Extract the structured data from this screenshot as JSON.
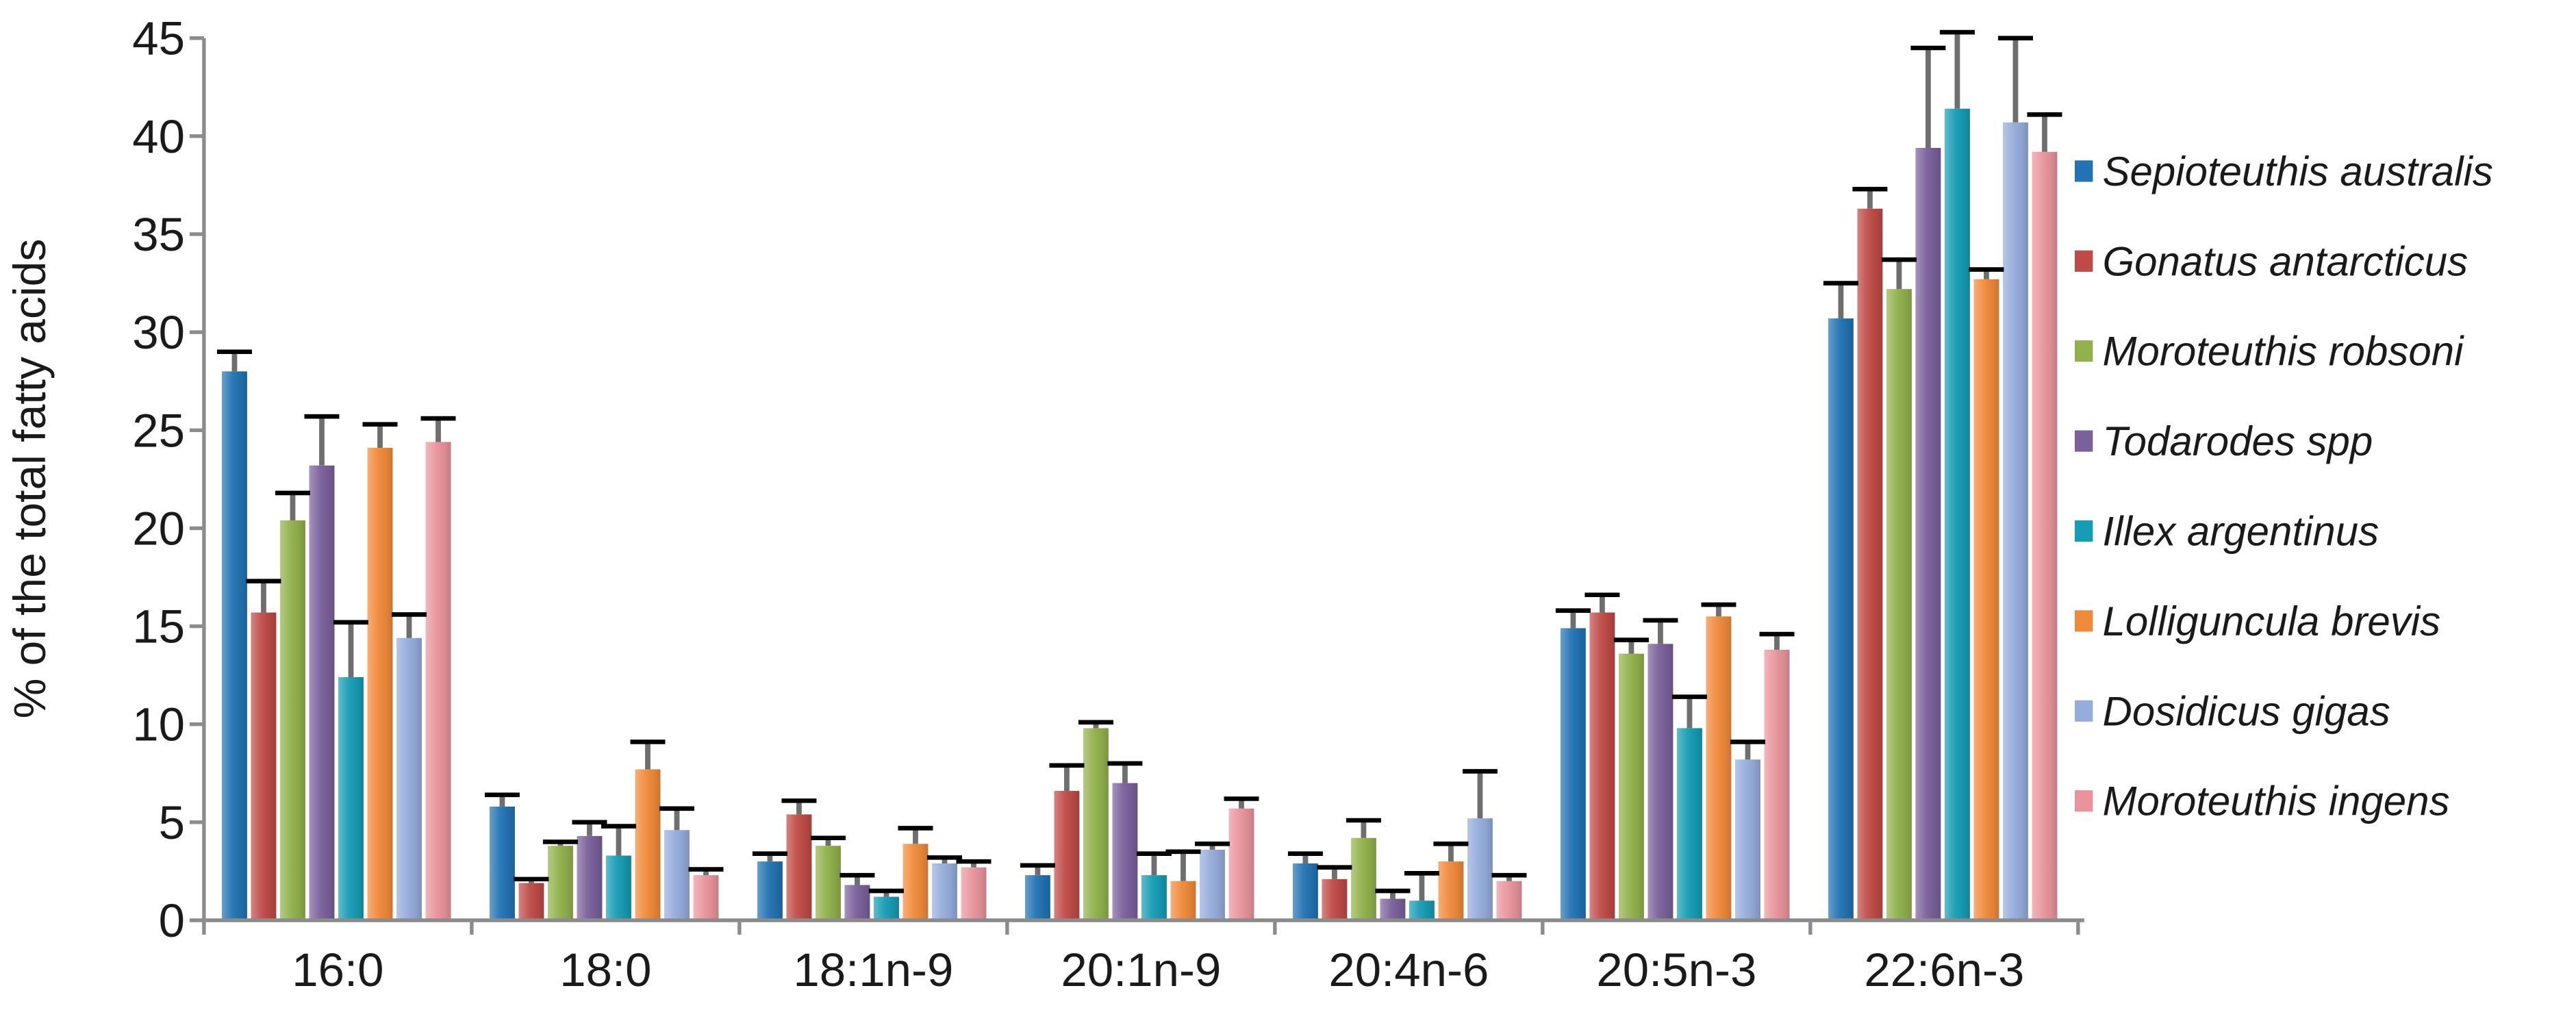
{
  "figure": {
    "background": "#ffffff",
    "axis_color": "#8c8c8c",
    "text_color": "#1a1a1a",
    "error_bar_shaft_color": "#6e6e6e",
    "error_bar_cap_color": "#000000"
  },
  "chart_data": {
    "type": "bar",
    "title": "",
    "xlabel": "",
    "ylabel": "% of the total fatty acids",
    "ylim": [
      0,
      45
    ],
    "yticks": [
      0,
      5,
      10,
      15,
      20,
      25,
      30,
      35,
      40,
      45
    ],
    "grid": false,
    "legend_position": "right",
    "legend_style": "italic",
    "categories": [
      "16:0",
      "18:0",
      "18:1n-9",
      "20:1n-9",
      "20:4n-6",
      "20:5n-3",
      "22:6n-3"
    ],
    "series": [
      {
        "name": "Sepioteuthis australis",
        "color": "#2273b3",
        "values": [
          28.0,
          5.8,
          3.0,
          2.3,
          2.9,
          14.9,
          30.7
        ],
        "errors": [
          1.0,
          0.6,
          0.4,
          0.5,
          0.5,
          0.9,
          1.8
        ]
      },
      {
        "name": "Gonatus antarcticus",
        "color": "#bf4b47",
        "values": [
          15.7,
          1.9,
          5.4,
          6.6,
          2.1,
          15.7,
          36.3
        ],
        "errors": [
          1.6,
          0.2,
          0.7,
          1.3,
          0.6,
          0.9,
          1.0
        ]
      },
      {
        "name": "Moroteuthis robsoni",
        "color": "#92b14c",
        "values": [
          20.4,
          3.8,
          3.8,
          9.8,
          4.2,
          13.6,
          32.2
        ],
        "errors": [
          1.4,
          0.2,
          0.4,
          0.3,
          0.9,
          0.7,
          1.5
        ]
      },
      {
        "name": "Todarodes spp",
        "color": "#7a619b",
        "values": [
          23.2,
          4.3,
          1.8,
          7.0,
          1.1,
          14.1,
          39.4
        ],
        "errors": [
          2.5,
          0.7,
          0.5,
          1.0,
          0.4,
          1.2,
          5.1
        ]
      },
      {
        "name": "Illex argentinus",
        "color": "#169cb4",
        "values": [
          12.4,
          3.3,
          1.2,
          2.3,
          1.0,
          9.8,
          41.4
        ],
        "errors": [
          2.8,
          1.5,
          0.3,
          1.1,
          1.4,
          1.6,
          3.9
        ]
      },
      {
        "name": "Lolliguncula brevis",
        "color": "#f08a3b",
        "values": [
          24.1,
          7.7,
          3.9,
          2.0,
          3.0,
          15.5,
          32.7
        ],
        "errors": [
          1.2,
          1.4,
          0.8,
          1.5,
          0.9,
          0.6,
          0.5
        ]
      },
      {
        "name": "Dosidicus gigas",
        "color": "#95acdc",
        "values": [
          14.4,
          4.6,
          2.9,
          3.6,
          5.2,
          8.2,
          40.7
        ],
        "errors": [
          1.2,
          1.1,
          0.3,
          0.3,
          2.4,
          0.9,
          4.3
        ]
      },
      {
        "name": "Moroteuthis ingens",
        "color": "#e9949c",
        "values": [
          24.4,
          2.3,
          2.7,
          5.7,
          2.0,
          13.8,
          39.2
        ],
        "errors": [
          1.2,
          0.3,
          0.3,
          0.5,
          0.3,
          0.8,
          1.9
        ]
      }
    ]
  }
}
